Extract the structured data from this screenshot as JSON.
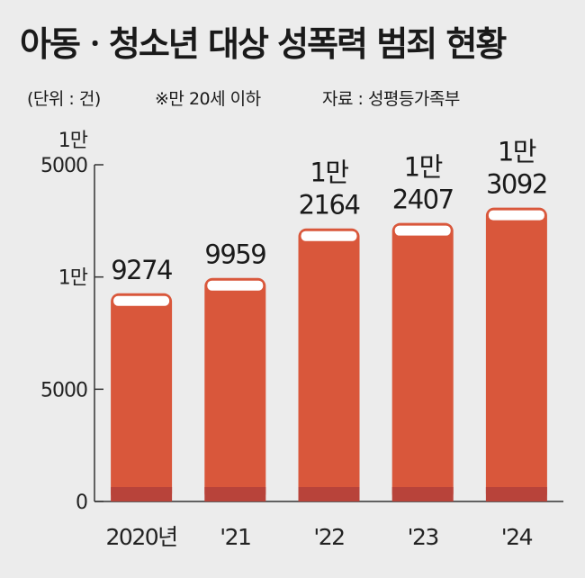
{
  "title": "아동ㆍ청소년 대상 성폭력 범죄 현황",
  "unit_note": "(단위 : 건)",
  "age_note": "※만 20세 이하",
  "source": "자료 : 성평등가족부",
  "colors": {
    "bar": "#d9573b",
    "bar_base": "#b8433a",
    "axis": "#333333",
    "background": "#ececec"
  },
  "chart_data": {
    "type": "bar",
    "categories": [
      "2020년",
      "'21",
      "'22",
      "'23",
      "'24"
    ],
    "values": [
      9274,
      9959,
      12164,
      12407,
      13092
    ],
    "value_labels": [
      [
        "9274"
      ],
      [
        "9959"
      ],
      [
        "1만",
        "2164"
      ],
      [
        "1만",
        "2407"
      ],
      [
        "1만",
        "3092"
      ]
    ],
    "y_ticks": [
      {
        "value": 0,
        "lines": [
          "0"
        ]
      },
      {
        "value": 5000,
        "lines": [
          "5000"
        ]
      },
      {
        "value": 10000,
        "lines": [
          "1만"
        ]
      },
      {
        "value": 15000,
        "lines": [
          "1만",
          "5000"
        ]
      }
    ],
    "ylim": [
      0,
      15000
    ],
    "grid": false
  }
}
